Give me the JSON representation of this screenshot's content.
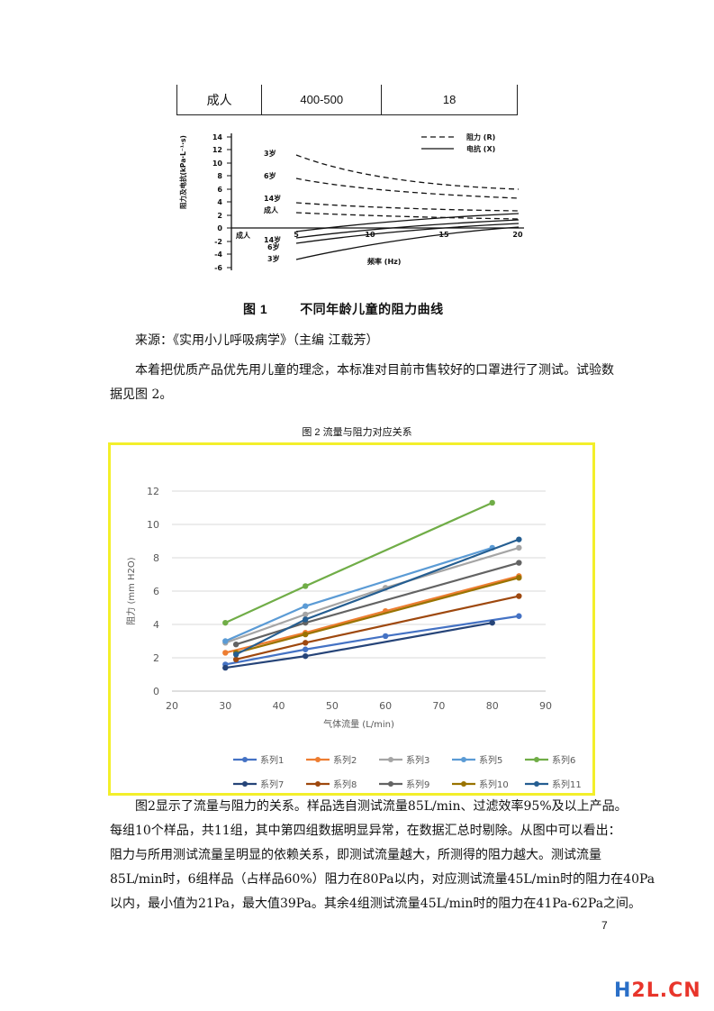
{
  "top_table": {
    "row": [
      "成人",
      "400-500",
      "18"
    ]
  },
  "figure1": {
    "legend_r": "阻力 (R)",
    "legend_x": "电抗 (X)",
    "ylabel": "阻力及电抗(kPa·L⁻¹·s)",
    "xlabel": "频率 (Hz)",
    "yticks": [
      "14",
      "12",
      "10",
      "8",
      "6",
      "4",
      "2",
      "0",
      "-2",
      "-4",
      "-6"
    ],
    "xticks": [
      "5",
      "10",
      "15",
      "20"
    ],
    "r_labels": [
      "3岁",
      "6岁",
      "14岁",
      "成人"
    ],
    "x_labels": [
      "成人",
      "14岁",
      "6岁",
      "3岁"
    ],
    "caption_num": "图 1",
    "caption_text": "不同年龄儿童的阻力曲线"
  },
  "source_line": "来源：《实用小儿呼吸病学》（主编 江载芳）",
  "para1_line1": "本着把优质产品优先用儿童的理念，本标准对目前市售较好的口罩进行了测试。试验数",
  "para1_line2": "据见图 2。",
  "fig2_title": "图 2 流量与阻力对应关系",
  "chart_data": {
    "type": "line",
    "title": "图 2 流量与阻力对应关系",
    "xlabel": "气体流量 (L/min)",
    "ylabel": "阻力 (mm H2O)",
    "xlim": [
      20,
      90
    ],
    "ylim": [
      0,
      12
    ],
    "xticks": [
      20,
      30,
      40,
      50,
      60,
      70,
      80,
      90
    ],
    "yticks": [
      0,
      2,
      4,
      6,
      8,
      10,
      12
    ],
    "grid": true,
    "legend_position": "bottom",
    "series": [
      {
        "name": "系列1",
        "color": "#4472c4",
        "x": [
          30,
          45,
          60,
          85
        ],
        "y": [
          1.6,
          2.5,
          3.3,
          4.5
        ]
      },
      {
        "name": "系列2",
        "color": "#ed7d31",
        "x": [
          30,
          45,
          60,
          85
        ],
        "y": [
          2.3,
          3.5,
          4.8,
          6.9
        ]
      },
      {
        "name": "系列3",
        "color": "#a5a5a5",
        "x": [
          30,
          45,
          60,
          85
        ],
        "y": [
          2.9,
          4.6,
          6.2,
          8.6
        ]
      },
      {
        "name": "系列5",
        "color": "#5b9bd5",
        "x": [
          30,
          45,
          80
        ],
        "y": [
          3.0,
          5.1,
          8.6
        ]
      },
      {
        "name": "系列6",
        "color": "#70ad47",
        "x": [
          30,
          45,
          80
        ],
        "y": [
          4.1,
          6.3,
          11.3
        ]
      },
      {
        "name": "系列7",
        "color": "#264478",
        "x": [
          30,
          45,
          80
        ],
        "y": [
          1.4,
          2.1,
          4.1
        ]
      },
      {
        "name": "系列8",
        "color": "#9e480e",
        "x": [
          32,
          45,
          85
        ],
        "y": [
          1.9,
          2.9,
          5.7
        ]
      },
      {
        "name": "系列9",
        "color": "#636363",
        "x": [
          32,
          45,
          85
        ],
        "y": [
          2.8,
          4.1,
          7.7
        ]
      },
      {
        "name": "系列10",
        "color": "#997300",
        "x": [
          32,
          45,
          85
        ],
        "y": [
          2.3,
          3.4,
          6.8
        ]
      },
      {
        "name": "系列11",
        "color": "#255e91",
        "x": [
          32,
          45,
          85
        ],
        "y": [
          2.2,
          4.3,
          9.1
        ]
      }
    ]
  },
  "para2_lines": [
    "图2显示了流量与阻力的关系。样品选自测试流量85L/min、过滤效率95%及以上产品。",
    "每组10个样品，共11组，其中第四组数据明显异常，在数据汇总时剔除。从图中可以看出：",
    "阻力与所用测试流量呈明显的依赖关系，即测试流量越大，所测得的阻力越大。测试流量",
    "85L/min时，6组样品（占样品60%）阻力在80Pa以内，对应测试流量45L/min时的阻力在40Pa",
    "以内，最小值为21Pa，最大值39Pa。其余4组测试流量45L/min时的阻力在41Pa-62Pa之间。"
  ],
  "page_number": "7",
  "watermark": {
    "h": "H",
    "rest": "2L.CN"
  }
}
